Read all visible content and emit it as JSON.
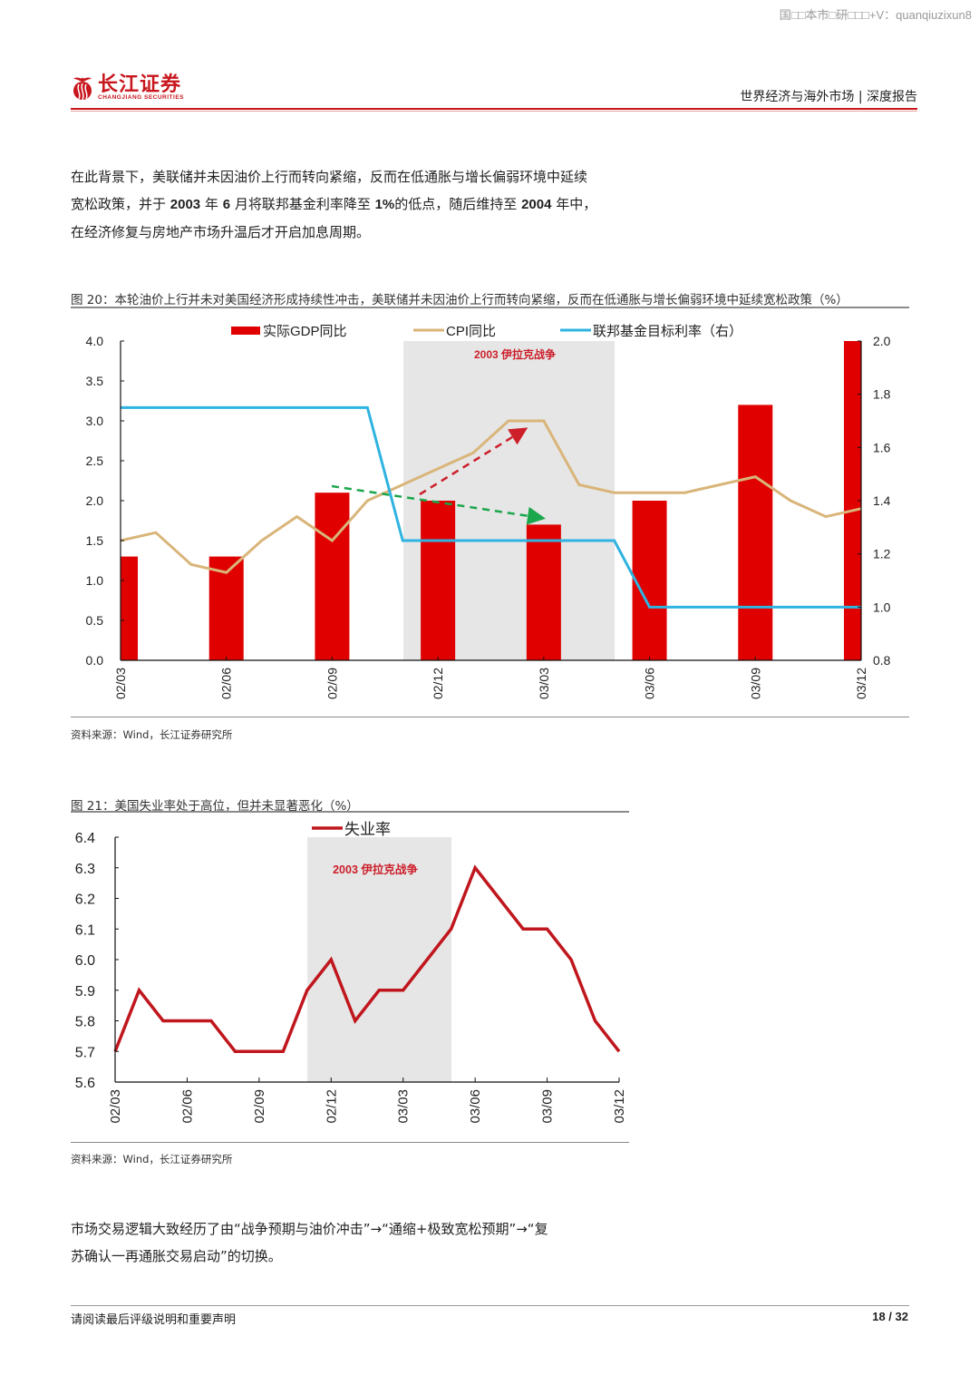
{
  "watermark": "国□□本市□研□□□+V：quanqiuzixun8",
  "header": {
    "logo_cn": "长江证券",
    "logo_en": "CHANGJIANG SECURITIES",
    "section": "世界经济与海外市场 | 深度报告",
    "brand_color": "#c8161d"
  },
  "intro_paragraph": {
    "line1": "在此背景下，美联储并未因油价上行而转向紧缩，反而在低通胀与增长偏弱环境中延续",
    "line2_parts": [
      "宽松政策，并于 ",
      "2003",
      " 年 ",
      "6",
      " 月将联邦基金利率降至 ",
      "1%",
      "的低点，随后维持至 ",
      "2004",
      " 年中，"
    ],
    "line3": "在经济修复与房地产市场升温后才开启加息周期。"
  },
  "figure20": {
    "title": "图 20：本轮油价上行并未对美国经济形成持续性冲击，美联储并未因油价上行而转向紧缩，反而在低通胀与增长偏弱环境中延续宽松政策（%）",
    "source": "资料来源：Wind，长江证券研究所",
    "shade_label": "2003 伊拉克战争"
  },
  "figure21": {
    "title": "图 21：美国失业率处于高位，但并未显著恶化（%）",
    "source": "资料来源：Wind，长江证券研究所",
    "shade_label": "2003 伊拉克战争"
  },
  "closing_paragraph": {
    "line1": "市场交易逻辑大致经历了由“战争预期与油价冲击”→“通缩+极致宽松预期”→“复",
    "line2": "苏确认一再通胀交易启动”的切换。"
  },
  "footer": {
    "disclaimer": "请阅读最后评级说明和重要声明",
    "page": "18 / 32"
  },
  "chart_data": [
    {
      "type": "bar+line",
      "title": "本轮油价上行并未对美国经济形成持续性冲击，美联储并未因油价上行而转向紧缩，反而在低通胀与增长偏弱环境中延续宽松政策（%）",
      "x_tick_labels": [
        "02/03",
        "02/06",
        "02/09",
        "02/12",
        "03/03",
        "03/06",
        "03/09",
        "03/12"
      ],
      "x_months": [
        "02/03",
        "02/04",
        "02/05",
        "02/06",
        "02/07",
        "02/08",
        "02/09",
        "02/10",
        "02/11",
        "02/12",
        "03/01",
        "03/02",
        "03/03",
        "03/04",
        "03/05",
        "03/06",
        "03/07",
        "03/08",
        "03/09",
        "03/10",
        "03/11",
        "03/12"
      ],
      "left_axis": {
        "ylim": [
          0.0,
          4.0
        ],
        "ticks": [
          "0.0",
          "0.5",
          "1.0",
          "1.5",
          "2.0",
          "2.5",
          "3.0",
          "3.5",
          "4.0"
        ]
      },
      "right_axis": {
        "ylim": [
          0.8,
          2.0
        ],
        "ticks": [
          "0.8",
          "1.0",
          "1.2",
          "1.4",
          "1.6",
          "1.8",
          "2.0"
        ]
      },
      "legend_position": "top",
      "series": [
        {
          "name": "实际GDP同比",
          "type": "bar",
          "axis": "left",
          "color": "#e00000",
          "x": [
            "02/03",
            "02/06",
            "02/09",
            "02/12",
            "03/03",
            "03/06",
            "03/09",
            "03/12"
          ],
          "values": [
            1.3,
            1.3,
            2.1,
            2.0,
            1.7,
            2.0,
            3.2,
            4.0
          ]
        },
        {
          "name": "CPI同比",
          "type": "line",
          "axis": "left",
          "color": "#d9b57a",
          "values": [
            1.5,
            1.6,
            1.2,
            1.1,
            1.5,
            1.8,
            1.5,
            2.0,
            2.2,
            2.4,
            2.6,
            3.0,
            3.0,
            2.2,
            2.1,
            2.1,
            2.1,
            2.2,
            2.3,
            2.0,
            1.8,
            1.9
          ]
        },
        {
          "name": "联邦基金目标利率（右）",
          "type": "line",
          "axis": "right",
          "color": "#2fb3e0",
          "values": [
            1.75,
            1.75,
            1.75,
            1.75,
            1.75,
            1.75,
            1.75,
            1.75,
            1.25,
            1.25,
            1.25,
            1.25,
            1.25,
            1.25,
            1.25,
            1.0,
            1.0,
            1.0,
            1.0,
            1.0,
            1.0,
            1.0
          ]
        }
      ],
      "annotations": [
        {
          "type": "shaded_region",
          "from": "02/11",
          "to": "03/05",
          "label": "2003 伊拉克战争",
          "color": "#e6e6e6"
        },
        {
          "type": "arrow",
          "style": "dashed",
          "color": "#cc1f2a",
          "from": [
            "02/12",
            2.1
          ],
          "to": [
            "03/02",
            2.85
          ]
        },
        {
          "type": "arrow",
          "style": "dashed",
          "color": "#1aa64a",
          "from": [
            "02/09",
            2.2
          ],
          "to": [
            "03/03",
            1.8
          ]
        }
      ]
    },
    {
      "type": "line",
      "title": "美国失业率处于高位，但并未显著恶化（%）",
      "x_tick_labels": [
        "02/03",
        "02/06",
        "02/09",
        "02/12",
        "03/03",
        "03/06",
        "03/09",
        "03/12"
      ],
      "x_months": [
        "02/03",
        "02/04",
        "02/05",
        "02/06",
        "02/07",
        "02/08",
        "02/09",
        "02/10",
        "02/11",
        "02/12",
        "03/01",
        "03/02",
        "03/03",
        "03/04",
        "03/05",
        "03/06",
        "03/07",
        "03/08",
        "03/09",
        "03/10",
        "03/11",
        "03/12"
      ],
      "ylim": [
        5.6,
        6.4
      ],
      "y_ticks": [
        "5.6",
        "5.7",
        "5.8",
        "5.9",
        "6.0",
        "6.1",
        "6.2",
        "6.3",
        "6.4"
      ],
      "legend_position": "top",
      "series": [
        {
          "name": "失业率",
          "color": "#c0161d",
          "values": [
            5.7,
            5.9,
            5.8,
            5.8,
            5.8,
            5.7,
            5.7,
            5.7,
            5.9,
            6.0,
            5.8,
            5.9,
            5.9,
            6.0,
            6.1,
            6.3,
            6.2,
            6.1,
            6.1,
            6.0,
            5.8,
            5.7
          ]
        }
      ],
      "annotations": [
        {
          "type": "shaded_region",
          "from": "02/11",
          "to": "03/05",
          "label": "2003 伊拉克战争",
          "color": "#e6e6e6"
        }
      ]
    }
  ]
}
